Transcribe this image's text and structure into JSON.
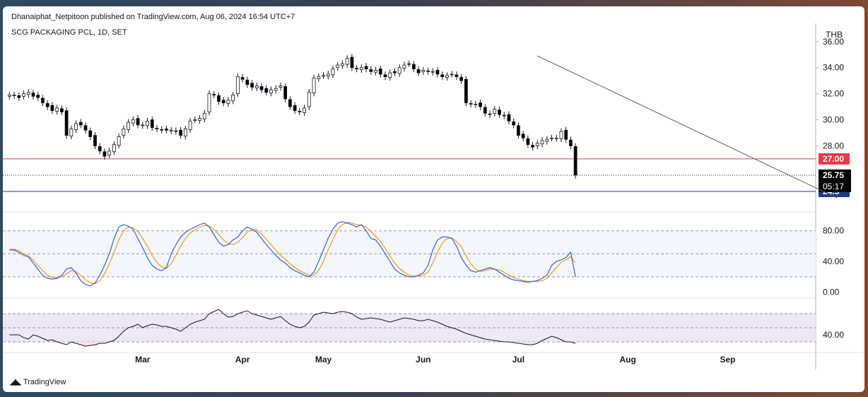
{
  "header": {
    "published": "Dhanaiphat_Netpitoon published on TradingView.com, Aug 06, 2024 16:54 UTC+7",
    "symbol": "SCG PACKAGING PCL, 1D, SET"
  },
  "footer": {
    "brand": "TradingView",
    "logo_icon": "tradingview-logo-icon"
  },
  "chart_data": {
    "type": "candlestick",
    "currency": "THB",
    "price_axis": {
      "ylim": [
        23.2,
        37.4
      ],
      "ticks": [
        {
          "v": 36,
          "label": "36.00"
        },
        {
          "v": 34,
          "label": "34.00"
        },
        {
          "v": 32,
          "label": "32.00"
        },
        {
          "v": 30,
          "label": "30.00"
        },
        {
          "v": 28,
          "label": "28.00"
        }
      ]
    },
    "time_axis": {
      "labels": [
        {
          "i": 28,
          "label": "Mar"
        },
        {
          "i": 49,
          "label": "Apr"
        },
        {
          "i": 66,
          "label": "May"
        },
        {
          "i": 87,
          "label": "Jun"
        },
        {
          "i": 107,
          "label": "Jul"
        },
        {
          "i": 130,
          "label": "Aug"
        },
        {
          "i": 151,
          "label": "Sep"
        }
      ],
      "total_slots": 170
    },
    "closes": [
      31.9,
      31.9,
      31.7,
      32.0,
      32.1,
      31.8,
      31.7,
      31.3,
      31.0,
      30.7,
      30.9,
      30.6,
      28.8,
      29.3,
      29.7,
      29.6,
      29.2,
      28.7,
      28.0,
      27.6,
      27.2,
      27.6,
      28.1,
      28.7,
      29.3,
      29.8,
      30.0,
      29.6,
      29.6,
      29.9,
      29.4,
      29.3,
      29.2,
      29.2,
      29.2,
      29.1,
      28.8,
      29.3,
      29.9,
      30.0,
      30.1,
      30.5,
      32.0,
      31.9,
      31.4,
      31.3,
      31.5,
      31.9,
      33.3,
      33.1,
      32.7,
      32.5,
      32.6,
      32.3,
      32.1,
      32.3,
      32.4,
      32.6,
      31.6,
      31.0,
      30.7,
      30.6,
      30.9,
      32.1,
      33.2,
      33.3,
      33.4,
      33.5,
      33.9,
      34.2,
      34.3,
      34.7,
      34.0,
      33.9,
      34.0,
      33.9,
      33.7,
      33.8,
      33.5,
      33.3,
      33.6,
      33.6,
      34.0,
      34.2,
      34.3,
      33.9,
      33.6,
      33.8,
      33.7,
      33.7,
      33.5,
      33.3,
      33.4,
      33.5,
      33.3,
      33.0,
      31.3,
      31.2,
      31.2,
      31.0,
      30.5,
      30.4,
      30.8,
      30.4,
      30.3,
      29.9,
      29.6,
      28.8,
      28.6,
      28.1,
      27.9,
      28.2,
      28.4,
      28.5,
      28.6,
      28.6,
      29.1,
      28.5,
      28.0,
      25.75
    ],
    "candles_mode": "derived-from-closes",
    "last_price": {
      "value": 25.75,
      "label": "25.75",
      "countdown": "05:17"
    },
    "levels": [
      {
        "value": 27.0,
        "label": "27.00",
        "color": "#f23645"
      },
      {
        "value": 24.5,
        "label": "24.5",
        "color": "#1e3a8a"
      }
    ],
    "trendline": {
      "from": {
        "i": 111,
        "price": 34.9
      },
      "to": {
        "i": 174,
        "price": 24.0
      },
      "color": "#5d606b"
    },
    "stochastic": {
      "ylim": [
        -5,
        100
      ],
      "ticks": [
        {
          "v": 80,
          "label": "80.00"
        },
        {
          "v": 40,
          "label": "40.00"
        },
        {
          "v": 0,
          "label": "0.00"
        }
      ],
      "upper": 80,
      "lower": 20,
      "k_color": "#2962ff",
      "d_color": "#ff9800",
      "k": [
        55,
        55,
        52,
        48,
        46,
        38,
        30,
        22,
        18,
        17,
        18,
        22,
        30,
        32,
        25,
        15,
        10,
        8,
        12,
        22,
        35,
        50,
        70,
        85,
        88,
        86,
        82,
        70,
        58,
        45,
        35,
        30,
        28,
        32,
        50,
        62,
        72,
        78,
        82,
        85,
        88,
        90,
        85,
        75,
        65,
        60,
        62,
        68,
        72,
        80,
        85,
        82,
        78,
        70,
        62,
        55,
        48,
        42,
        38,
        32,
        28,
        25,
        22,
        20,
        26,
        40,
        55,
        70,
        82,
        90,
        92,
        90,
        88,
        85,
        88,
        80,
        70,
        68,
        60,
        50,
        40,
        30,
        25,
        22,
        20,
        20,
        22,
        25,
        35,
        55,
        68,
        72,
        72,
        70,
        60,
        45,
        35,
        28,
        26,
        28,
        30,
        32,
        30,
        26,
        22,
        18,
        16,
        15,
        14,
        13,
        14,
        15,
        18,
        22,
        35,
        40,
        42,
        45,
        52,
        20
      ],
      "d": [
        56,
        56,
        54,
        50,
        47,
        42,
        35,
        28,
        22,
        19,
        19,
        20,
        24,
        28,
        27,
        22,
        16,
        12,
        11,
        15,
        24,
        37,
        52,
        68,
        80,
        85,
        84,
        79,
        70,
        60,
        48,
        39,
        33,
        31,
        37,
        48,
        60,
        70,
        77,
        81,
        85,
        87,
        86,
        82,
        75,
        68,
        63,
        62,
        65,
        71,
        78,
        82,
        81,
        76,
        69,
        62,
        55,
        48,
        43,
        37,
        32,
        28,
        25,
        22,
        22,
        28,
        40,
        55,
        69,
        81,
        88,
        91,
        90,
        88,
        87,
        85,
        79,
        73,
        66,
        57,
        47,
        38,
        31,
        26,
        22,
        21,
        21,
        22,
        26,
        38,
        52,
        64,
        70,
        71,
        66,
        59,
        47,
        37,
        30,
        27,
        28,
        30,
        30,
        29,
        26,
        22,
        19,
        17,
        15,
        14,
        14,
        14,
        15,
        18,
        25,
        32,
        39,
        42,
        46,
        38
      ]
    },
    "rsi": {
      "ylim": [
        20,
        90
      ],
      "ticks": [
        {
          "v": 40,
          "label": "40.00"
        }
      ],
      "upper": 70,
      "mid": 50,
      "lower": 30,
      "color": "#131722",
      "band_color": "#ede7f6",
      "values": [
        40,
        40,
        40,
        36,
        34,
        40,
        38,
        35,
        32,
        33,
        30,
        28,
        26,
        30,
        28,
        26,
        24,
        25,
        26,
        28,
        28,
        30,
        32,
        38,
        45,
        50,
        52,
        55,
        50,
        53,
        55,
        54,
        52,
        52,
        50,
        48,
        45,
        50,
        55,
        58,
        60,
        62,
        70,
        73,
        76,
        70,
        65,
        66,
        70,
        72,
        74,
        70,
        68,
        66,
        64,
        62,
        64,
        66,
        60,
        55,
        52,
        50,
        52,
        58,
        68,
        70,
        72,
        71,
        70,
        72,
        73,
        72,
        70,
        65,
        62,
        63,
        64,
        63,
        62,
        60,
        58,
        60,
        62,
        64,
        63,
        62,
        60,
        60,
        62,
        60,
        58,
        55,
        52,
        50,
        48,
        45,
        42,
        40,
        38,
        36,
        34,
        33,
        32,
        31,
        30,
        30,
        29,
        28,
        27,
        26,
        26,
        28,
        32,
        35,
        38,
        36,
        33,
        30,
        30,
        28
      ],
      "oversold_fill": "#fde2e4"
    }
  }
}
